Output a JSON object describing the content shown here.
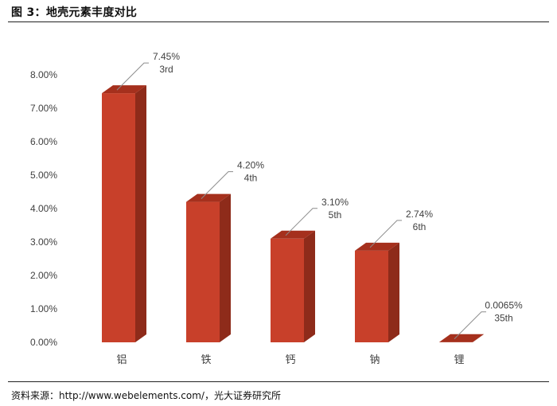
{
  "figure": {
    "title": "图 3：地壳元素丰度对比",
    "source": "资料来源：http://www.webelements.com/，光大证券研究所"
  },
  "chart_data": {
    "type": "bar",
    "style": "3d-column",
    "categories": [
      "铝",
      "铁",
      "钙",
      "钠",
      "锂"
    ],
    "series": [
      {
        "values": [
          7.45,
          4.2,
          3.1,
          2.74,
          0.0065
        ],
        "labels": [
          "7.45%",
          "4.20%",
          "3.10%",
          "2.74%",
          "0.0065%"
        ],
        "ranks": [
          "3rd",
          "4th",
          "5th",
          "6th",
          "35th"
        ]
      }
    ],
    "ylim": [
      0,
      8
    ],
    "yticks": [
      "0.00%",
      "1.00%",
      "2.00%",
      "3.00%",
      "4.00%",
      "5.00%",
      "6.00%",
      "7.00%",
      "8.00%"
    ],
    "grid": false,
    "legend": "none",
    "colors": {
      "bar_front": "#C8402A",
      "bar_side": "#8E2B1A",
      "bar_top": "#A5301D"
    }
  }
}
